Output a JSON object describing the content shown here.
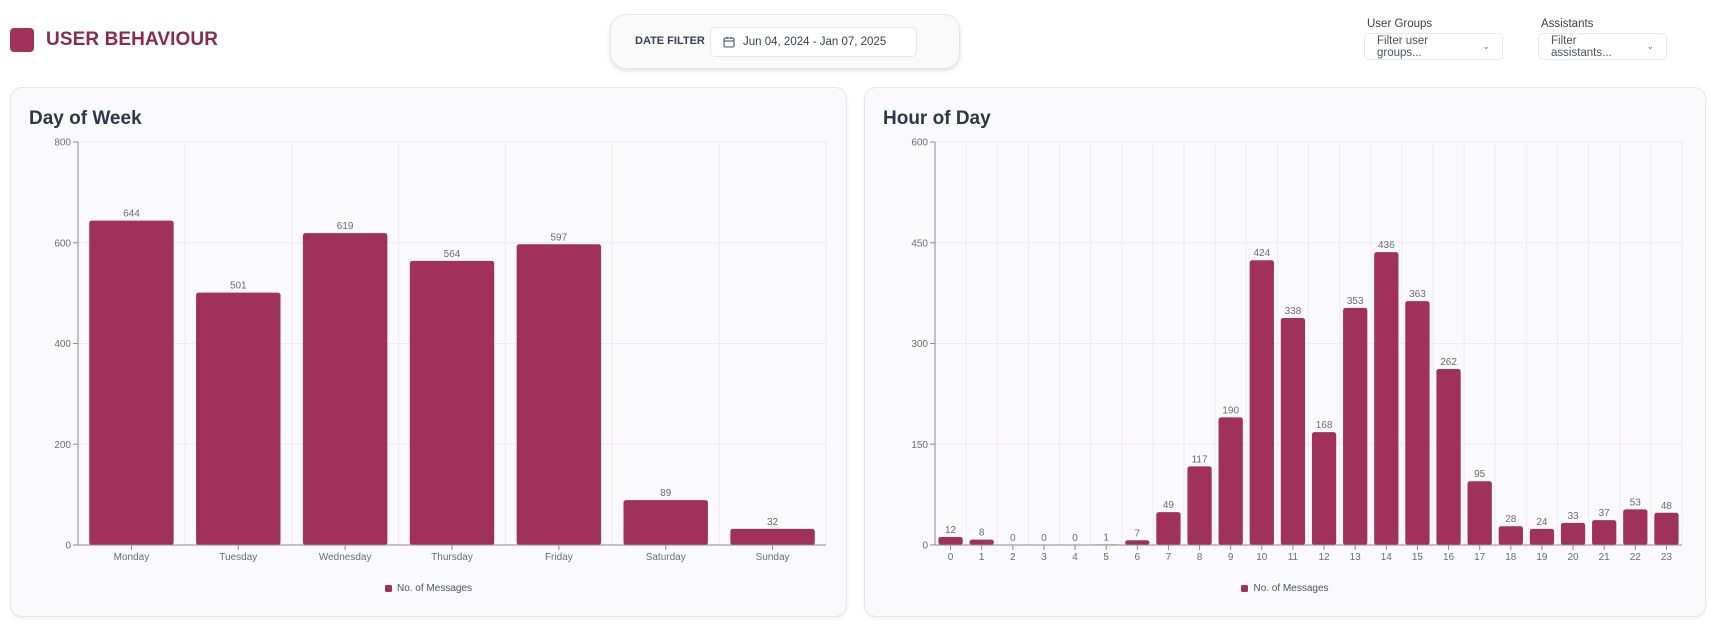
{
  "header": {
    "title": "USER BEHAVIOUR",
    "brand_color": "#a0325a",
    "date_filter": {
      "label": "DATE FILTER",
      "value": "Jun 04, 2024 - Jan 07, 2025",
      "icon": "calendar-icon"
    },
    "user_groups": {
      "label": "User Groups",
      "placeholder": "Filter user groups...",
      "icon": "chevron-down-icon"
    },
    "assistants": {
      "label": "Assistants",
      "placeholder": "Filter assistants...",
      "icon": "chevron-down-icon"
    }
  },
  "chart_data": [
    {
      "type": "bar",
      "title": "Day of Week",
      "categories": [
        "Monday",
        "Tuesday",
        "Wednesday",
        "Thursday",
        "Friday",
        "Saturday",
        "Sunday"
      ],
      "series": [
        {
          "name": "No. of Messages",
          "values": [
            644,
            501,
            619,
            564,
            597,
            89,
            32
          ],
          "color": "#a0325a"
        }
      ],
      "yticks": [
        0,
        200,
        400,
        600,
        800
      ],
      "ylim": [
        0,
        800
      ],
      "xlabel": "",
      "ylabel": "",
      "grid": true,
      "legend": "bottom-center",
      "data_labels": true
    },
    {
      "type": "bar",
      "title": "Hour of Day",
      "categories": [
        "0",
        "1",
        "2",
        "3",
        "4",
        "5",
        "6",
        "7",
        "8",
        "9",
        "10",
        "11",
        "12",
        "13",
        "14",
        "15",
        "16",
        "17",
        "18",
        "19",
        "20",
        "21",
        "22",
        "23"
      ],
      "series": [
        {
          "name": "No. of Messages",
          "values": [
            12,
            8,
            0,
            0,
            0,
            1,
            7,
            49,
            117,
            190,
            424,
            338,
            168,
            353,
            436,
            363,
            262,
            95,
            28,
            24,
            33,
            37,
            53,
            48
          ],
          "color": "#a0325a"
        }
      ],
      "yticks": [
        0,
        150,
        300,
        450,
        600
      ],
      "ylim": [
        0,
        600
      ],
      "xlabel": "",
      "ylabel": "",
      "grid": true,
      "legend": "bottom-center",
      "data_labels": true
    }
  ]
}
